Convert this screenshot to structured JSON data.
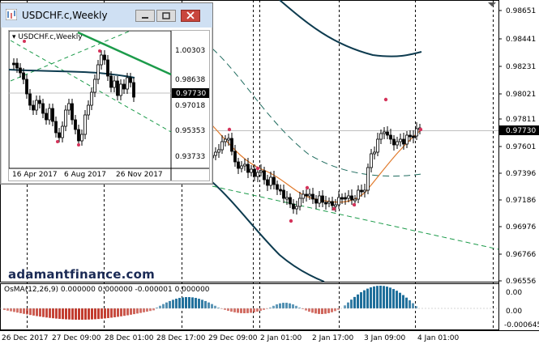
{
  "main": {
    "brand": "adamantfinance.com",
    "current_price": "0.97730",
    "price_ticks": [
      "0.98651",
      "0.98441",
      "0.98231",
      "0.98021",
      "0.97811",
      "0.97601",
      "0.97396",
      "0.97186",
      "0.96976",
      "0.96766",
      "0.96556"
    ],
    "time_ticks": [
      "26 Dec 2017",
      "27 Dec 09:00",
      "28 Dec 01:00",
      "28 Dec 17:00",
      "29 Dec 09:00",
      "2 Jan 01:00",
      "2 Jan 17:00",
      "3 Jan 09:00",
      "4 Jan 01:00"
    ],
    "osma_label": "OsMA(12,26,9) 0.000000 0.000000 -0.000001 0.000000",
    "osma_ticks": [
      "0.00",
      "-0.000645"
    ],
    "osma_extra_tick": "0.00"
  },
  "window": {
    "title": "USDCHF.c,Weekly",
    "chart_label": "USDCHF.c,Weekly",
    "current_price": "0.97730",
    "price_ticks": [
      "1.00303",
      "0.98638",
      "0.97018",
      "0.95353",
      "0.93733"
    ],
    "time_ticks": [
      "16 Apr 2017",
      "6 Aug 2017",
      "26 Nov 2017"
    ]
  },
  "colors": {
    "candle": "#000000",
    "bollinger_dark": "#0d3b4f",
    "bollinger_mid": "#1e6b5e",
    "ema": "#e07a2c",
    "channel": "#1c9b4a",
    "osma_pos": "#1f6f9b",
    "osma_neg": "#c23b2e",
    "fractal": "#d4335a"
  },
  "icons": [
    "app-icon",
    "minimize-icon",
    "restore-icon",
    "close-icon",
    "arrow-down-icon"
  ]
}
